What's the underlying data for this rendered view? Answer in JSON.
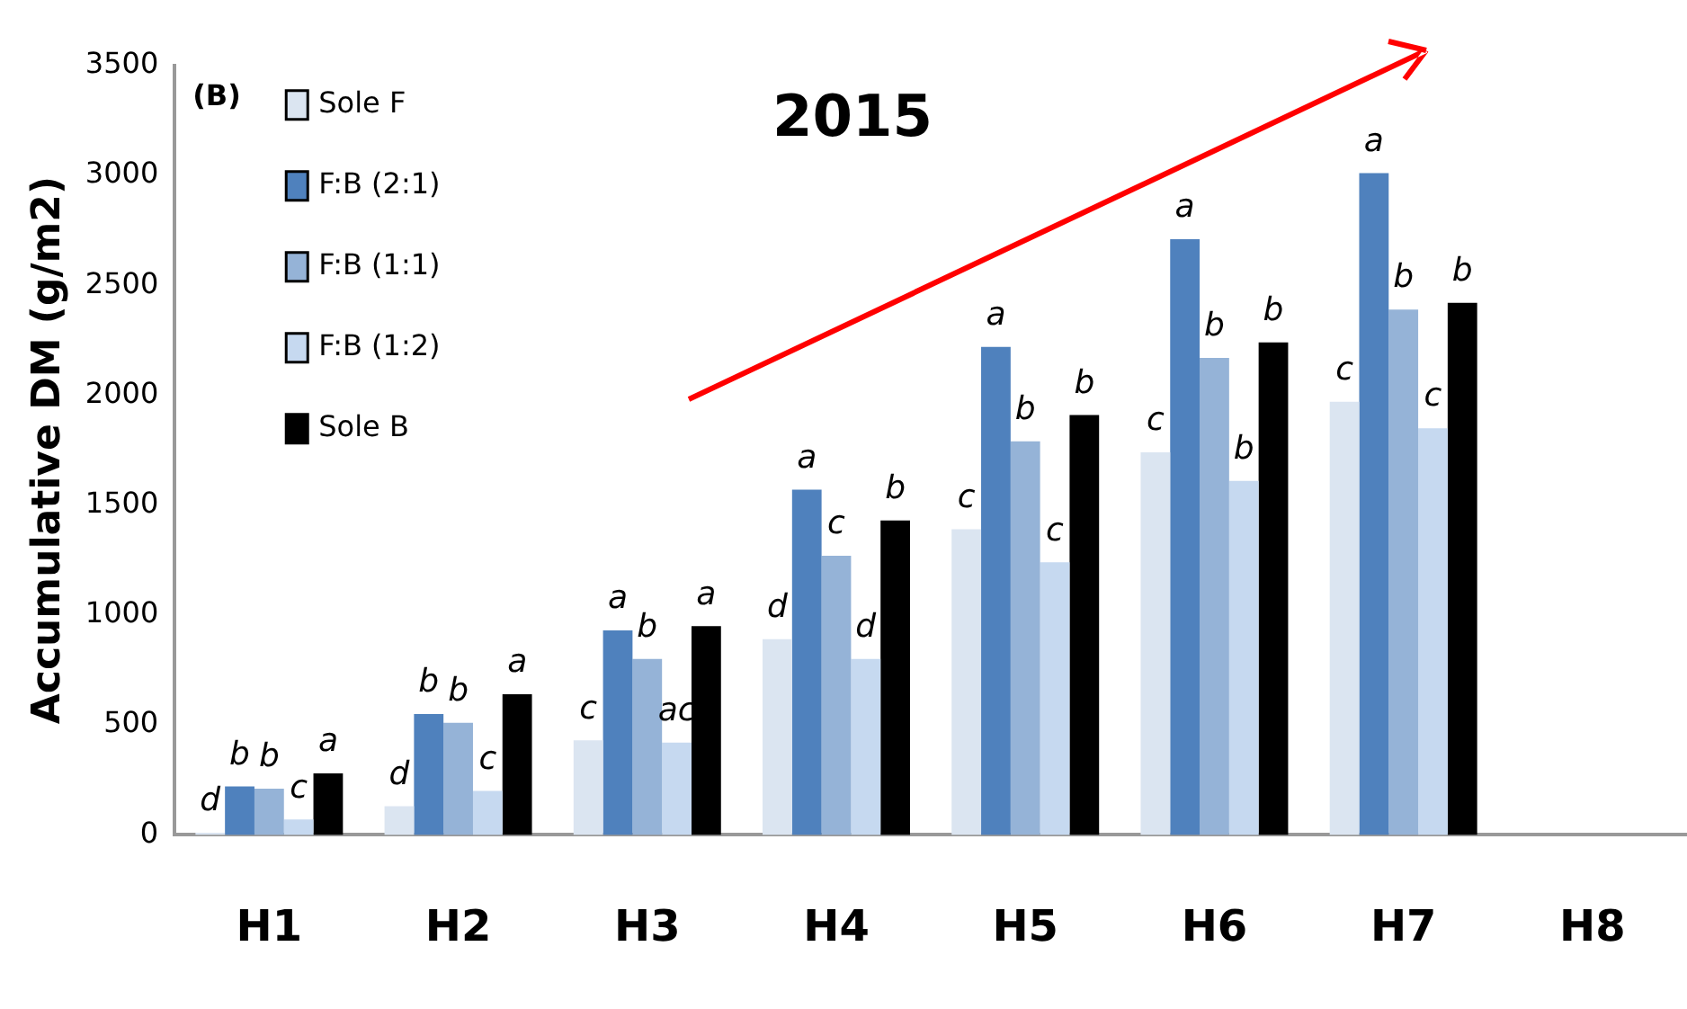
{
  "chart_data": {
    "type": "bar",
    "title": "2015",
    "ylabel": "Accumulative DM (g/m2)",
    "annotations": [
      "(B)"
    ],
    "categories": [
      "H1",
      "H2",
      "H3",
      "H4",
      "H5",
      "H6",
      "H7",
      "H8"
    ],
    "series": [
      {
        "name": "Sole F",
        "color": "#dbe5f1",
        "values": [
          10,
          130,
          430,
          890,
          1390,
          1740,
          1970,
          null
        ],
        "value_labels": [
          "d",
          "d",
          "c",
          "d",
          "c",
          "c",
          "c",
          null
        ]
      },
      {
        "name": "F:B (2:1)",
        "color": "#4f81bd",
        "values": [
          220,
          550,
          930,
          1570,
          2220,
          2710,
          3010,
          null
        ],
        "value_labels": [
          "b",
          "b",
          "a",
          "a",
          "a",
          "a",
          "a",
          null
        ]
      },
      {
        "name": "F:B (1:1)",
        "color": "#95b3d7",
        "values": [
          210,
          510,
          800,
          1270,
          1790,
          2170,
          2390,
          null
        ],
        "value_labels": [
          "b",
          "b",
          "b",
          "c",
          "b",
          "b",
          "b",
          null
        ]
      },
      {
        "name": "F:B (1:2)",
        "color": "#c6d9f0",
        "values": [
          70,
          200,
          420,
          800,
          1240,
          1610,
          1850,
          null
        ],
        "value_labels": [
          "c",
          "c",
          "ac",
          "d",
          "c",
          "b",
          "c",
          null
        ]
      },
      {
        "name": "Sole B",
        "color": "#000000",
        "values": [
          280,
          640,
          950,
          1430,
          1910,
          2240,
          2420,
          null
        ],
        "value_labels": [
          "a",
          "a",
          "a",
          "b",
          "b",
          "b",
          "b",
          null
        ]
      }
    ],
    "ylim": [
      0,
      3500
    ],
    "yticks": [
      0,
      500,
      1000,
      1500,
      2000,
      2500,
      3000,
      3500
    ],
    "grid": false,
    "legend": "top left"
  }
}
